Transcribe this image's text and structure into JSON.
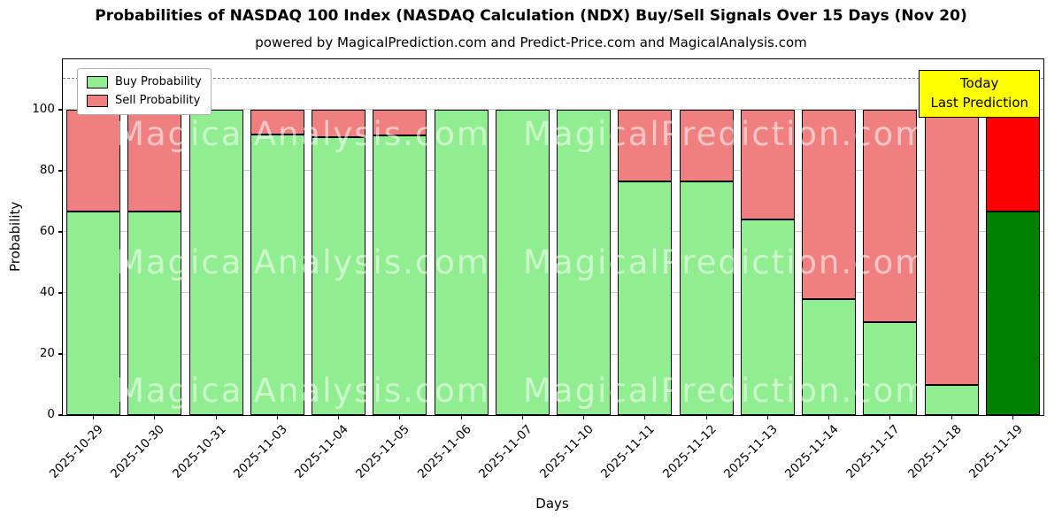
{
  "chart_data": {
    "type": "bar",
    "stacked": true,
    "title": "Probabilities of NASDAQ 100 Index (NASDAQ Calculation (NDX) Buy/Sell Signals Over 15 Days (Nov 20)",
    "subtitle": "powered by MagicalPrediction.com and Predict-Price.com and MagicalAnalysis.com",
    "xlabel": "Days",
    "ylabel": "Probability",
    "categories": [
      "2025-10-29",
      "2025-10-30",
      "2025-10-31",
      "2025-11-03",
      "2025-11-04",
      "2025-11-05",
      "2025-11-06",
      "2025-11-07",
      "2025-11-10",
      "2025-11-11",
      "2025-11-12",
      "2025-11-13",
      "2025-11-14",
      "2025-11-17",
      "2025-11-18",
      "2025-11-19"
    ],
    "series": [
      {
        "name": "Buy Probability",
        "color": "#90ee90",
        "values": [
          66.7,
          66.7,
          100,
          92,
          91,
          91.5,
          100,
          100,
          100,
          76.5,
          76.5,
          64,
          38,
          30.5,
          10,
          66.7
        ]
      },
      {
        "name": "Sell Probability",
        "color": "#f08080",
        "values": [
          33.3,
          33.3,
          0,
          8,
          9,
          8.5,
          0,
          0,
          0,
          23.5,
          23.5,
          36,
          62,
          69.5,
          90,
          33.3
        ]
      }
    ],
    "today_bar": {
      "index": 15,
      "buy_color": "#008000",
      "sell_color": "#ff0000"
    },
    "yticks": [
      0,
      20,
      40,
      60,
      80,
      100
    ],
    "ylim": [
      0,
      116.5
    ],
    "grid": true,
    "dashed_line_y": 110,
    "legend_position": "upper left",
    "annotation": {
      "line1": "Today",
      "line2": "Last Prediction",
      "bg_color": "#ffff00"
    }
  },
  "watermarks": {
    "left": "MagicalAnalysis.com",
    "right": "MagicalPrediction.com"
  }
}
